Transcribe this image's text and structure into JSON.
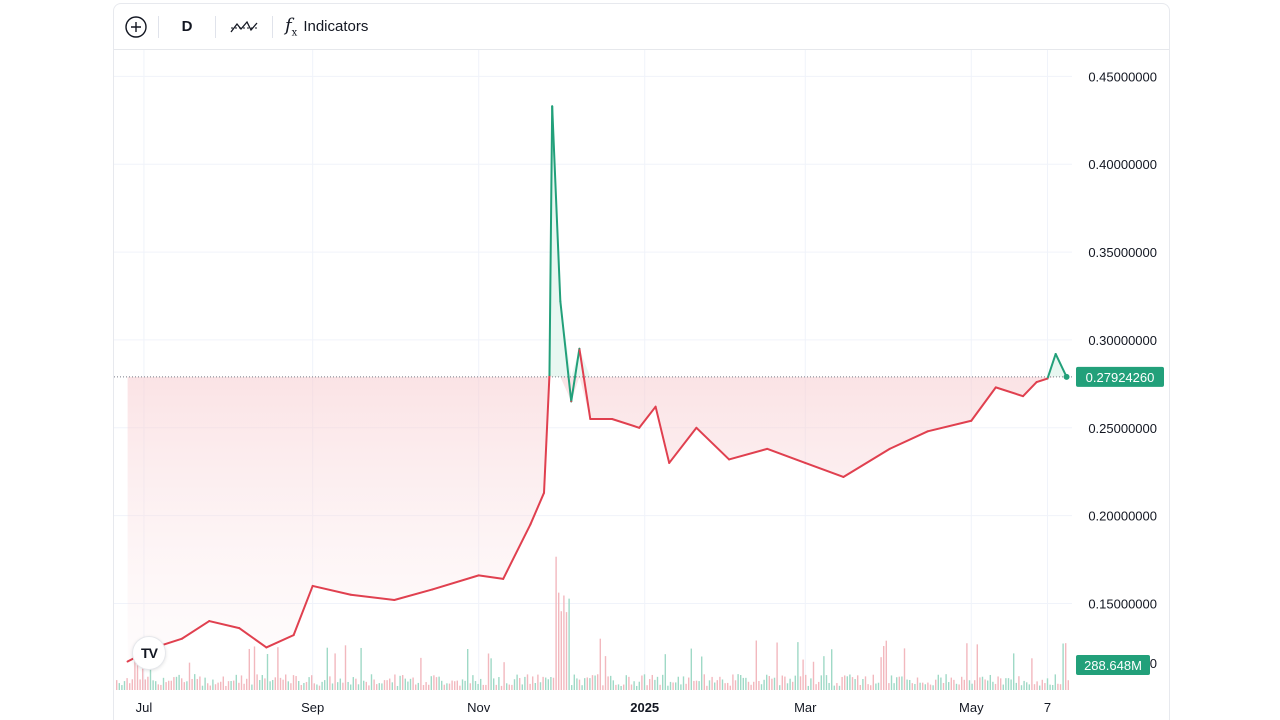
{
  "toolbar": {
    "interval_label": "D",
    "indicators_label": "Indicators",
    "icons": [
      "add-circle-icon",
      "chart-type-icon",
      "function-icon"
    ]
  },
  "chart_data": {
    "type": "line",
    "x": [
      "2024-06-25",
      "2024-07-05",
      "2024-07-15",
      "2024-07-25",
      "2024-08-05",
      "2024-08-15",
      "2024-08-25",
      "2024-09-01",
      "2024-09-15",
      "2024-10-01",
      "2024-10-15",
      "2024-11-01",
      "2024-11-10",
      "2024-11-20",
      "2024-11-25",
      "2024-11-27",
      "2024-11-28",
      "2024-12-01",
      "2024-12-05",
      "2024-12-08",
      "2024-12-12",
      "2024-12-20",
      "2024-12-30",
      "2025-01-05",
      "2025-01-10",
      "2025-01-20",
      "2025-02-01",
      "2025-02-15",
      "2025-03-01",
      "2025-03-15",
      "2025-04-01",
      "2025-04-15",
      "2025-05-01",
      "2025-05-10",
      "2025-05-20",
      "2025-05-25",
      "2025-05-29",
      "2025-06-01",
      "2025-06-05"
    ],
    "y": [
      0.117,
      0.125,
      0.13,
      0.14,
      0.136,
      0.125,
      0.132,
      0.16,
      0.155,
      0.152,
      0.158,
      0.166,
      0.164,
      0.195,
      0.213,
      0.28,
      0.433,
      0.322,
      0.265,
      0.295,
      0.255,
      0.255,
      0.25,
      0.262,
      0.23,
      0.25,
      0.232,
      0.238,
      0.23,
      0.222,
      0.238,
      0.248,
      0.254,
      0.273,
      0.268,
      0.276,
      0.278,
      0.292,
      0.279
    ],
    "last_value": "0.27924260",
    "volume_label": "288.648M",
    "baseline": 0.279,
    "ylim": [
      0.115,
      0.465
    ],
    "y_ticks": [
      "0.45000000",
      "0.40000000",
      "0.35000000",
      "0.30000000",
      "0.25000000",
      "0.20000000",
      "0.15000000"
    ],
    "x_ticks": [
      "Jul",
      "Sep",
      "Nov",
      "2025",
      "Mar",
      "May",
      "7"
    ],
    "colors": {
      "up": "#22a07a",
      "down": "#e0404f",
      "fill_down": "#fbe4e6",
      "fill_up": "#d9f1e8"
    },
    "grid": true
  }
}
